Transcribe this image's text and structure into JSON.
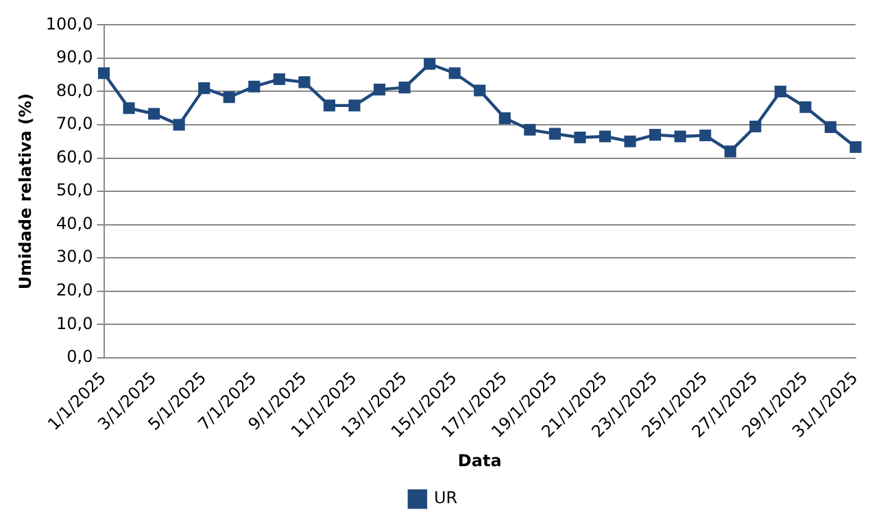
{
  "chart_data": {
    "type": "line",
    "xlabel": "Data",
    "ylabel": "Umidade relativa (%)",
    "categories": [
      "1/1/2025",
      null,
      "3/1/2025",
      null,
      "5/1/2025",
      null,
      "7/1/2025",
      null,
      "9/1/2025",
      null,
      "11/1/2025",
      null,
      "13/1/2025",
      null,
      "15/1/2025",
      null,
      "17/1/2025",
      null,
      "19/1/2025",
      null,
      "21/1/2025",
      null,
      "23/1/2025",
      null,
      "25/1/2025",
      null,
      "27/1/2025",
      null,
      "29/1/2025",
      null,
      "31/1/2025"
    ],
    "series": [
      {
        "name": "UR",
        "color": "#1f497d",
        "values": [
          85.5,
          75,
          73.3,
          70,
          81,
          78.3,
          81.5,
          83.7,
          82.8,
          75.8,
          75.8,
          80.6,
          81.2,
          88.3,
          85.5,
          80.3,
          72,
          68.5,
          67.3,
          66.2,
          66.5,
          65,
          67,
          66.5,
          66.8,
          62,
          69.5,
          80,
          75.3,
          69.3,
          63.3
        ]
      }
    ],
    "ylim": [
      0,
      100
    ],
    "yticks": [
      {
        "value": 0,
        "label": "0,0"
      },
      {
        "value": 10,
        "label": "10,0"
      },
      {
        "value": 20,
        "label": "20,0"
      },
      {
        "value": 30,
        "label": "30,0"
      },
      {
        "value": 40,
        "label": "40,0"
      },
      {
        "value": 50,
        "label": "50,0"
      },
      {
        "value": 60,
        "label": "60,0"
      },
      {
        "value": 70,
        "label": "70,0"
      },
      {
        "value": 80,
        "label": "80,0"
      },
      {
        "value": 90,
        "label": "90,0"
      },
      {
        "value": 100,
        "label": "100,0"
      }
    ],
    "grid": "y",
    "legend": "bottom",
    "marker": "square",
    "line_style": "solid"
  }
}
